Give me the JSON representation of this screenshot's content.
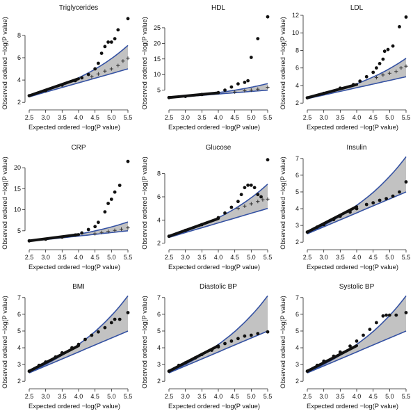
{
  "colors": {
    "band_fill": "#c2c2c2",
    "band_line": "#3552a3",
    "points": "#111111",
    "crosses": "#333333"
  },
  "chart_data": [
    {
      "type": "scatter",
      "title": "Triglycerides",
      "xlabel": "Expected ordered −log(P value)",
      "ylabel": "Observed ordered −log(P value)",
      "xlim": [
        2.5,
        5.5
      ],
      "ylim": [
        1.7,
        9.8
      ],
      "xticks": [
        "2.5",
        "3.0",
        "3.5",
        "4.0",
        "4.5",
        "5.0",
        "5.5"
      ],
      "yticks": [
        "2",
        "4",
        "6",
        "8"
      ],
      "envelope": {
        "lower_end": 5.0,
        "upper_end": 7.1
      },
      "points": [
        [
          2.5,
          2.6
        ],
        [
          3.0,
          3.05
        ],
        [
          3.5,
          3.55
        ],
        [
          3.9,
          3.95
        ],
        [
          4.1,
          4.2
        ],
        [
          4.3,
          4.5
        ],
        [
          4.5,
          5.0
        ],
        [
          4.6,
          5.5
        ],
        [
          4.7,
          6.4
        ],
        [
          4.8,
          7.0
        ],
        [
          4.9,
          7.4
        ],
        [
          5.0,
          7.4
        ],
        [
          5.1,
          7.7
        ],
        [
          5.2,
          8.5
        ],
        [
          5.5,
          9.5
        ]
      ],
      "crosses": [
        [
          4.4,
          4.3
        ],
        [
          4.6,
          4.55
        ],
        [
          4.8,
          4.8
        ],
        [
          5.0,
          5.0
        ],
        [
          5.2,
          5.3
        ],
        [
          5.35,
          5.7
        ],
        [
          5.5,
          5.95
        ]
      ]
    },
    {
      "type": "scatter",
      "title": "HDL",
      "xlabel": "Expected ordered −log(P value)",
      "ylabel": "Observed ordered −log(P value)",
      "xlim": [
        2.5,
        5.5
      ],
      "ylim": [
        0,
        29
      ],
      "xticks": [
        "2.5",
        "3.0",
        "3.5",
        "4.0",
        "4.5",
        "5.0",
        "5.5"
      ],
      "yticks": [
        "5",
        "10",
        "15",
        "20",
        "25"
      ],
      "envelope": {
        "lower_end": 5.0,
        "upper_end": 7.1
      },
      "points": [
        [
          2.5,
          2.6
        ],
        [
          3.0,
          3.0
        ],
        [
          3.5,
          3.6
        ],
        [
          4.0,
          4.2
        ],
        [
          4.2,
          5.0
        ],
        [
          4.4,
          6.0
        ],
        [
          4.6,
          7.0
        ],
        [
          4.8,
          7.5
        ],
        [
          4.9,
          8.0
        ],
        [
          5.0,
          15.5
        ],
        [
          5.2,
          21.5
        ],
        [
          5.5,
          28.5
        ]
      ],
      "crosses": [
        [
          4.5,
          4.4
        ],
        [
          4.8,
          4.8
        ],
        [
          5.0,
          5.0
        ],
        [
          5.2,
          5.3
        ],
        [
          5.5,
          5.9
        ]
      ]
    },
    {
      "type": "scatter",
      "title": "LDL",
      "xlabel": "Expected ordered −log(P value)",
      "ylabel": "Observed ordered −log(P value)",
      "xlim": [
        2.5,
        5.5
      ],
      "ylim": [
        1.7,
        12
      ],
      "xticks": [
        "2.5",
        "3.0",
        "3.5",
        "4.0",
        "4.5",
        "5.0",
        "5.5"
      ],
      "yticks": [
        "2",
        "4",
        "6",
        "8",
        "10",
        "12"
      ],
      "envelope": {
        "lower_end": 5.0,
        "upper_end": 7.1
      },
      "points": [
        [
          2.5,
          2.6
        ],
        [
          3.0,
          3.1
        ],
        [
          3.5,
          3.7
        ],
        [
          3.9,
          4.1
        ],
        [
          4.1,
          4.5
        ],
        [
          4.3,
          5.0
        ],
        [
          4.5,
          5.5
        ],
        [
          4.6,
          6.0
        ],
        [
          4.7,
          6.5
        ],
        [
          4.8,
          7.0
        ],
        [
          4.85,
          7.9
        ],
        [
          4.95,
          8.1
        ],
        [
          5.1,
          8.5
        ],
        [
          5.3,
          10.7
        ],
        [
          5.5,
          11.8
        ]
      ],
      "crosses": [
        [
          4.6,
          4.9
        ],
        [
          4.8,
          5.2
        ],
        [
          5.0,
          5.4
        ],
        [
          5.2,
          5.6
        ],
        [
          5.35,
          6.0
        ],
        [
          5.5,
          6.2
        ]
      ]
    },
    {
      "type": "scatter",
      "title": "CRP",
      "xlabel": "Expected ordered −log(P value)",
      "ylabel": "Observed ordered −log(P value)",
      "xlim": [
        2.5,
        5.5
      ],
      "ylim": [
        1.5,
        23
      ],
      "xticks": [
        "2.5",
        "3.0",
        "3.5",
        "4.0",
        "4.5",
        "5.0",
        "5.5"
      ],
      "yticks": [
        "5",
        "10",
        "15",
        "20"
      ],
      "envelope": {
        "lower_end": 5.0,
        "upper_end": 7.1
      },
      "points": [
        [
          2.5,
          2.6
        ],
        [
          3.0,
          3.0
        ],
        [
          3.5,
          3.5
        ],
        [
          3.9,
          4.0
        ],
        [
          4.1,
          4.5
        ],
        [
          4.3,
          5.3
        ],
        [
          4.5,
          6.0
        ],
        [
          4.6,
          7.0
        ],
        [
          4.8,
          9.5
        ],
        [
          4.9,
          11.5
        ],
        [
          5.0,
          12.5
        ],
        [
          5.1,
          14.2
        ],
        [
          5.25,
          15.8
        ],
        [
          5.5,
          21.5
        ]
      ],
      "crosses": [
        [
          4.5,
          4.3
        ],
        [
          4.7,
          4.6
        ],
        [
          4.9,
          4.85
        ],
        [
          5.1,
          5.1
        ],
        [
          5.3,
          5.4
        ],
        [
          5.5,
          5.7
        ]
      ]
    },
    {
      "type": "scatter",
      "title": "Glucose",
      "xlabel": "Expected ordered −log(P value)",
      "ylabel": "Observed ordered −log(P value)",
      "xlim": [
        2.5,
        5.5
      ],
      "ylim": [
        1.8,
        9.6
      ],
      "xticks": [
        "2.5",
        "3.0",
        "3.5",
        "4.0",
        "4.5",
        "5.0",
        "5.5"
      ],
      "yticks": [
        "2",
        "4",
        "6",
        "8"
      ],
      "envelope": {
        "lower_end": 5.0,
        "upper_end": 7.1
      },
      "points": [
        [
          2.5,
          2.6
        ],
        [
          3.0,
          3.1
        ],
        [
          3.5,
          3.6
        ],
        [
          4.0,
          4.2
        ],
        [
          4.2,
          4.6
        ],
        [
          4.4,
          5.1
        ],
        [
          4.6,
          5.6
        ],
        [
          4.7,
          6.2
        ],
        [
          4.8,
          6.8
        ],
        [
          4.9,
          7.0
        ],
        [
          5.0,
          7.0
        ],
        [
          5.1,
          6.8
        ],
        [
          5.2,
          6.2
        ],
        [
          5.3,
          6.0
        ],
        [
          5.5,
          9.2
        ]
      ],
      "crosses": [
        [
          4.6,
          5.0
        ],
        [
          4.8,
          5.2
        ],
        [
          5.0,
          5.4
        ],
        [
          5.2,
          5.6
        ],
        [
          5.35,
          5.75
        ],
        [
          5.5,
          5.8
        ]
      ]
    },
    {
      "type": "scatter",
      "title": "Insulin",
      "xlabel": "Expected ordered −log(P value)",
      "ylabel": "Observed ordered −log(P value)",
      "xlim": [
        2.5,
        5.5
      ],
      "ylim": [
        1.8,
        7.2
      ],
      "xticks": [
        "2.5",
        "3.0",
        "3.5",
        "4.0",
        "4.5",
        "5.0",
        "5.5"
      ],
      "yticks": [
        "2",
        "3",
        "4",
        "5",
        "6",
        "7"
      ],
      "envelope": {
        "lower_end": 5.0,
        "upper_end": 7.1
      },
      "points": [
        [
          2.5,
          2.6
        ],
        [
          2.8,
          2.9
        ],
        [
          3.0,
          3.05
        ],
        [
          3.3,
          3.35
        ],
        [
          3.5,
          3.55
        ],
        [
          3.8,
          3.8
        ],
        [
          4.0,
          4.0
        ],
        [
          4.3,
          4.25
        ],
        [
          4.5,
          4.35
        ],
        [
          4.7,
          4.5
        ],
        [
          4.9,
          4.6
        ],
        [
          5.1,
          4.75
        ],
        [
          5.3,
          5.0
        ],
        [
          5.5,
          5.6
        ]
      ],
      "crosses": []
    },
    {
      "type": "scatter",
      "title": "BMI",
      "xlabel": "Expected ordered −log(P value)",
      "ylabel": "Observed ordered −log(P value)",
      "xlim": [
        2.5,
        5.5
      ],
      "ylim": [
        1.8,
        7.2
      ],
      "xticks": [
        "2.5",
        "3.0",
        "3.5",
        "4.0",
        "4.5",
        "5.0",
        "5.5"
      ],
      "yticks": [
        "2",
        "3",
        "4",
        "5",
        "6",
        "7"
      ],
      "envelope": {
        "lower_end": 5.0,
        "upper_end": 7.1
      },
      "points": [
        [
          2.5,
          2.6
        ],
        [
          2.8,
          2.95
        ],
        [
          3.0,
          3.15
        ],
        [
          3.3,
          3.45
        ],
        [
          3.5,
          3.7
        ],
        [
          3.8,
          4.0
        ],
        [
          4.0,
          4.2
        ],
        [
          4.2,
          4.5
        ],
        [
          4.4,
          4.75
        ],
        [
          4.6,
          4.95
        ],
        [
          4.8,
          5.2
        ],
        [
          5.0,
          5.5
        ],
        [
          5.1,
          5.7
        ],
        [
          5.25,
          5.7
        ],
        [
          5.5,
          6.1
        ]
      ],
      "crosses": []
    },
    {
      "type": "scatter",
      "title": "Diastolic BP",
      "xlabel": "Expected ordered −log(P value)",
      "ylabel": "Observed ordered −log(P value)",
      "xlim": [
        2.5,
        5.5
      ],
      "ylim": [
        1.8,
        7.2
      ],
      "xticks": [
        "2.5",
        "3.0",
        "3.5",
        "4.0",
        "4.5",
        "5.0",
        "5.5"
      ],
      "yticks": [
        "2",
        "3",
        "4",
        "5",
        "6",
        "7"
      ],
      "envelope": {
        "lower_end": 5.0,
        "upper_end": 7.1
      },
      "points": [
        [
          2.5,
          2.6
        ],
        [
          2.8,
          2.95
        ],
        [
          3.0,
          3.1
        ],
        [
          3.3,
          3.4
        ],
        [
          3.5,
          3.6
        ],
        [
          3.8,
          3.85
        ],
        [
          4.0,
          4.05
        ],
        [
          4.2,
          4.25
        ],
        [
          4.4,
          4.4
        ],
        [
          4.6,
          4.55
        ],
        [
          4.8,
          4.7
        ],
        [
          5.0,
          4.75
        ],
        [
          5.2,
          4.85
        ],
        [
          5.5,
          4.95
        ]
      ],
      "crosses": []
    },
    {
      "type": "scatter",
      "title": "Systolic BP",
      "xlabel": "Expected ordered −log(P value)",
      "ylabel": "Observed ordered −log(P value)",
      "xlim": [
        2.5,
        5.5
      ],
      "ylim": [
        1.8,
        7.2
      ],
      "xticks": [
        "2.5",
        "3.0",
        "3.5",
        "4.0",
        "4.5",
        "5.0",
        "5.5"
      ],
      "yticks": [
        "2",
        "3",
        "4",
        "5",
        "6",
        "7"
      ],
      "envelope": {
        "lower_end": 5.0,
        "upper_end": 7.1
      },
      "points": [
        [
          2.5,
          2.6
        ],
        [
          2.8,
          2.95
        ],
        [
          3.0,
          3.2
        ],
        [
          3.3,
          3.5
        ],
        [
          3.5,
          3.75
        ],
        [
          3.8,
          4.1
        ],
        [
          4.0,
          4.4
        ],
        [
          4.2,
          4.75
        ],
        [
          4.4,
          5.1
        ],
        [
          4.6,
          5.5
        ],
        [
          4.8,
          5.9
        ],
        [
          4.9,
          5.95
        ],
        [
          5.0,
          5.95
        ],
        [
          5.2,
          5.95
        ],
        [
          5.5,
          6.1
        ]
      ],
      "crosses": []
    }
  ]
}
